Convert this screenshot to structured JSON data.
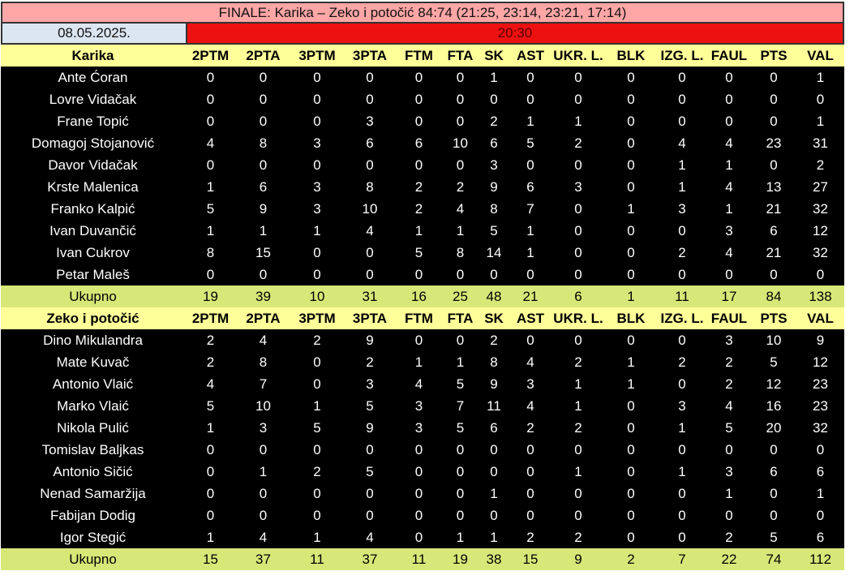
{
  "header": {
    "title": "FINALE: Karika – Zeko i potočić 84:74 (21:25, 23:14, 23:21, 17:14)",
    "date": "08.05.2025.",
    "time": "20:30"
  },
  "colors": {
    "title_bg": "#ffa6a6",
    "date_bg": "#dce6f1",
    "time_bg": "#ee1111",
    "header_bg": "#ffff99",
    "total_bg": "#d8e878",
    "row_bg": "#000000"
  },
  "columns": [
    "2PTM",
    "2PTA",
    "3PTM",
    "3PTA",
    "FTM",
    "FTA",
    "SK",
    "AST",
    "UKR. L.",
    "BLK",
    "IZG. L.",
    "FAUL",
    "PTS",
    "VAL"
  ],
  "teams": [
    {
      "name": "Karika",
      "players": [
        {
          "name": "Ante Ćoran",
          "stats": [
            0,
            0,
            0,
            0,
            0,
            0,
            1,
            0,
            0,
            0,
            0,
            0,
            0,
            1
          ]
        },
        {
          "name": "Lovre Vidačak",
          "stats": [
            0,
            0,
            0,
            0,
            0,
            0,
            0,
            0,
            0,
            0,
            0,
            0,
            0,
            0
          ]
        },
        {
          "name": "Frane Topić",
          "stats": [
            0,
            0,
            0,
            3,
            0,
            0,
            2,
            1,
            1,
            0,
            0,
            0,
            0,
            1
          ]
        },
        {
          "name": "Domagoj Stojanović",
          "stats": [
            4,
            8,
            3,
            6,
            6,
            10,
            6,
            5,
            2,
            0,
            4,
            4,
            23,
            31
          ]
        },
        {
          "name": "Davor Vidačak",
          "stats": [
            0,
            0,
            0,
            0,
            0,
            0,
            3,
            0,
            0,
            0,
            1,
            1,
            0,
            2
          ]
        },
        {
          "name": "Krste Malenica",
          "stats": [
            1,
            6,
            3,
            8,
            2,
            2,
            9,
            6,
            3,
            0,
            1,
            4,
            13,
            27
          ]
        },
        {
          "name": "Franko Kalpić",
          "stats": [
            5,
            9,
            3,
            10,
            2,
            4,
            8,
            7,
            0,
            1,
            3,
            1,
            21,
            32
          ]
        },
        {
          "name": "Ivan Duvančić",
          "stats": [
            1,
            1,
            1,
            4,
            1,
            1,
            5,
            1,
            0,
            0,
            0,
            3,
            6,
            12
          ]
        },
        {
          "name": "Ivan Cukrov",
          "stats": [
            8,
            15,
            0,
            0,
            5,
            8,
            14,
            1,
            0,
            0,
            2,
            4,
            21,
            32
          ]
        },
        {
          "name": "Petar Maleš",
          "stats": [
            0,
            0,
            0,
            0,
            0,
            0,
            0,
            0,
            0,
            0,
            0,
            0,
            0,
            0
          ]
        }
      ],
      "total": {
        "label": "Ukupno",
        "stats": [
          19,
          39,
          10,
          31,
          16,
          25,
          48,
          21,
          6,
          1,
          11,
          17,
          84,
          138
        ]
      }
    },
    {
      "name": "Zeko i potočić",
      "players": [
        {
          "name": "Dino Mikulandra",
          "stats": [
            2,
            4,
            2,
            9,
            0,
            0,
            2,
            0,
            0,
            0,
            0,
            3,
            10,
            9
          ]
        },
        {
          "name": "Mate Kuvač",
          "stats": [
            2,
            8,
            0,
            2,
            1,
            1,
            8,
            4,
            2,
            1,
            2,
            2,
            5,
            12
          ]
        },
        {
          "name": "Antonio Vlaić",
          "stats": [
            4,
            7,
            0,
            3,
            4,
            5,
            9,
            3,
            1,
            1,
            0,
            2,
            12,
            23
          ]
        },
        {
          "name": "Marko Vlaić",
          "stats": [
            5,
            10,
            1,
            5,
            3,
            7,
            11,
            4,
            1,
            0,
            3,
            4,
            16,
            23
          ]
        },
        {
          "name": "Nikola Pulić",
          "stats": [
            1,
            3,
            5,
            9,
            3,
            5,
            6,
            2,
            2,
            0,
            1,
            5,
            20,
            32
          ]
        },
        {
          "name": "Tomislav Baljkas",
          "stats": [
            0,
            0,
            0,
            0,
            0,
            0,
            0,
            0,
            0,
            0,
            0,
            0,
            0,
            0
          ]
        },
        {
          "name": "Antonio Sičić",
          "stats": [
            0,
            1,
            2,
            5,
            0,
            0,
            0,
            0,
            1,
            0,
            1,
            3,
            6,
            6
          ]
        },
        {
          "name": "Nenad Samaržija",
          "stats": [
            0,
            0,
            0,
            0,
            0,
            0,
            1,
            0,
            0,
            0,
            0,
            1,
            0,
            1
          ]
        },
        {
          "name": "Fabijan Dodig",
          "stats": [
            0,
            0,
            0,
            0,
            0,
            0,
            0,
            0,
            0,
            0,
            0,
            0,
            0,
            0
          ]
        },
        {
          "name": "Igor Stegić",
          "stats": [
            1,
            4,
            1,
            4,
            0,
            1,
            1,
            2,
            2,
            0,
            0,
            2,
            5,
            6
          ]
        }
      ],
      "total": {
        "label": "Ukupno",
        "stats": [
          15,
          37,
          11,
          37,
          11,
          19,
          38,
          15,
          9,
          2,
          7,
          22,
          74,
          112
        ]
      }
    }
  ]
}
